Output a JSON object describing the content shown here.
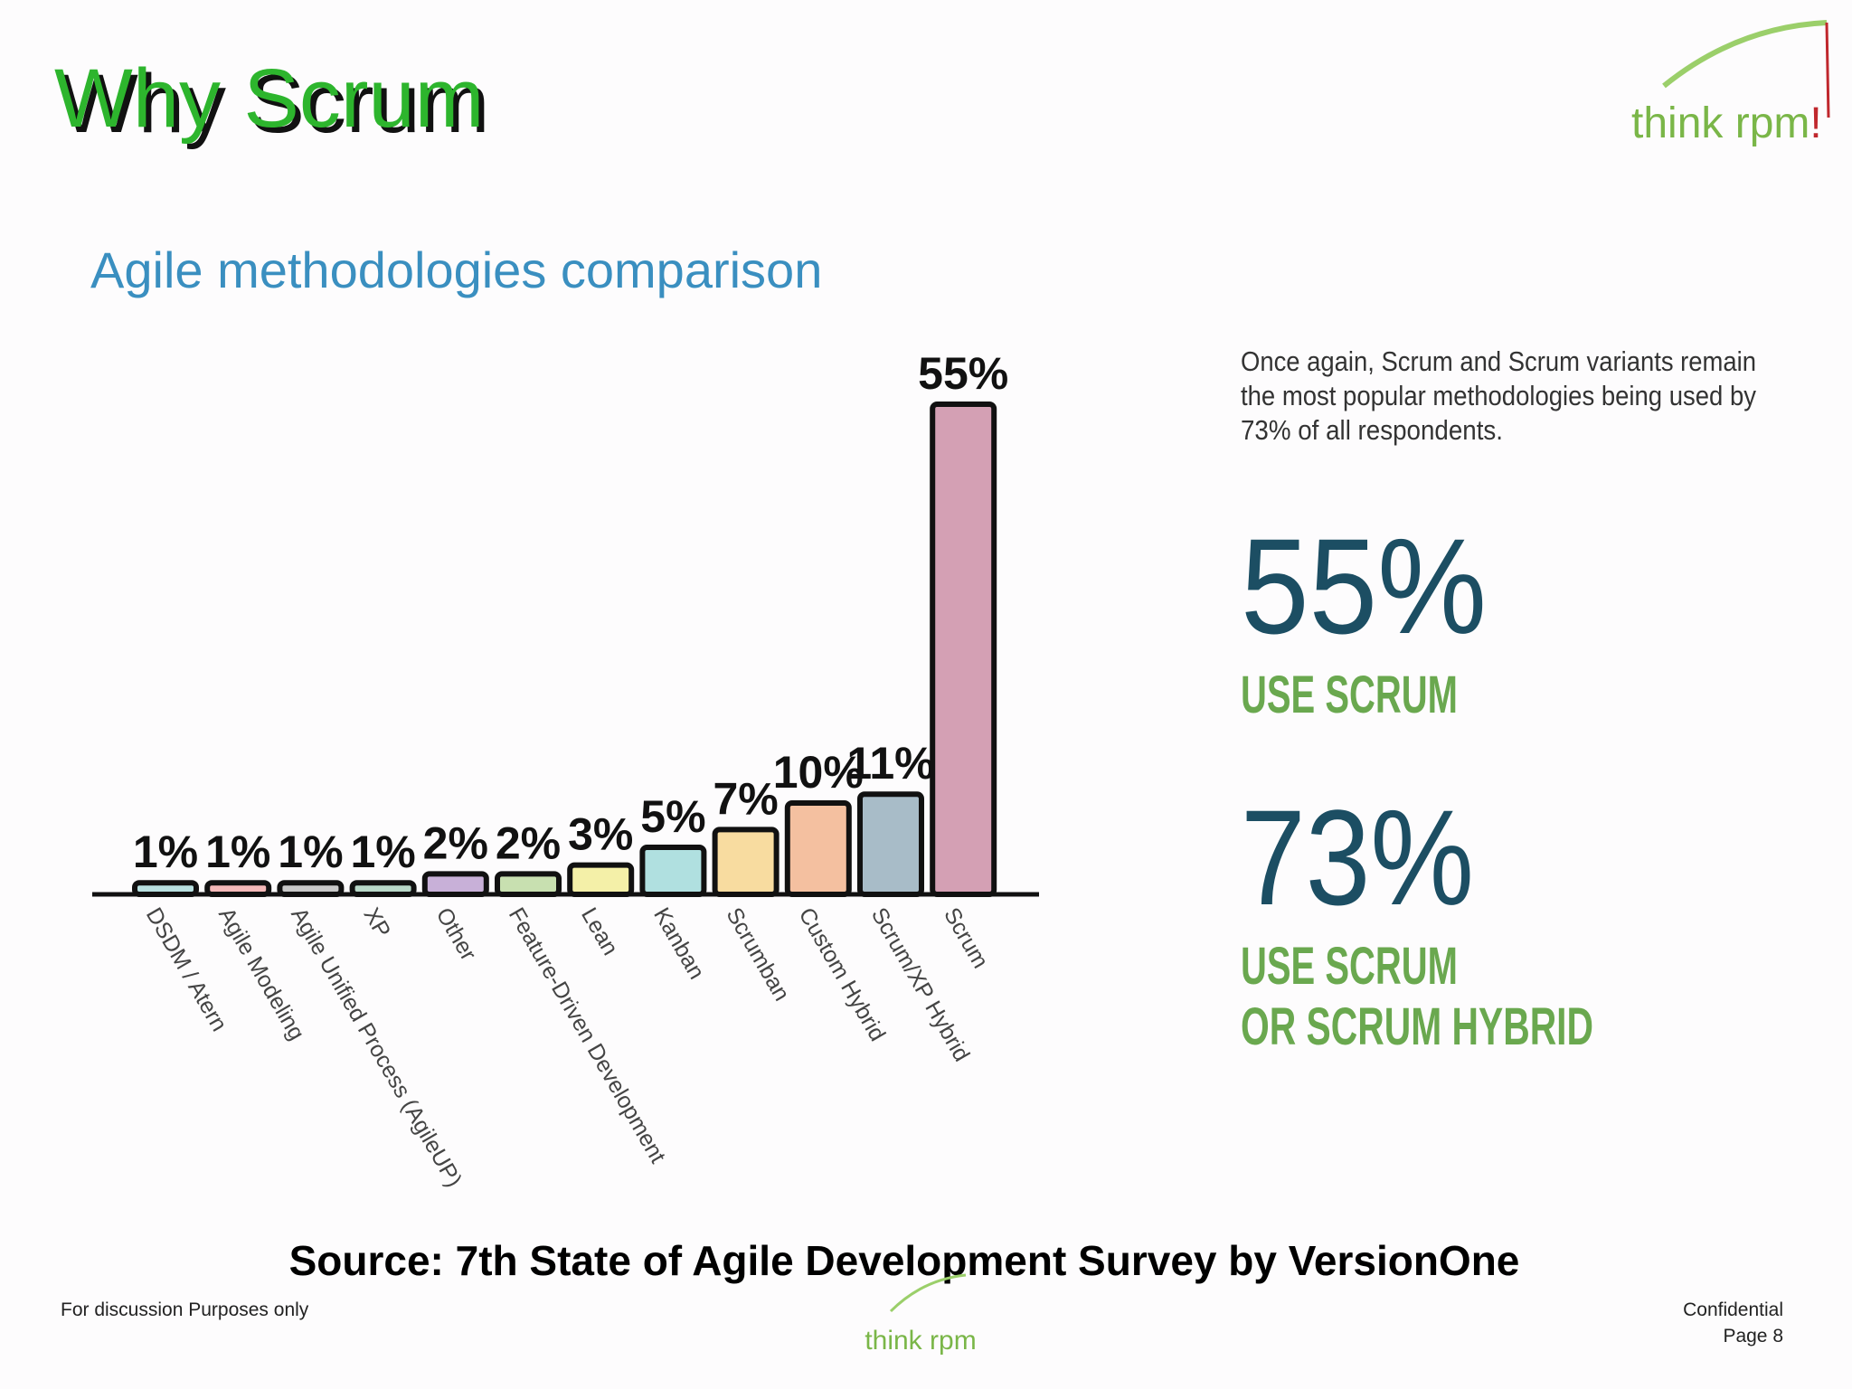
{
  "slide": {
    "title": "Why Scrum",
    "logo": "think rpm",
    "logo_mark": "!",
    "source": "Source: 7th State of Agile Development Survey by VersionOne",
    "footer_left": "For discussion Purposes only",
    "footer_right": [
      "Confidential",
      "Page 8"
    ]
  },
  "chart_data": {
    "type": "bar",
    "title": "Agile methodologies comparison",
    "categories": [
      "DSDM / Atern",
      "Agile Modeling",
      "Agile Unified Process (AgileUP)",
      "XP",
      "Other",
      "Feature-Driven Development",
      "Lean",
      "Kanban",
      "Scrumban",
      "Custom Hybrid",
      "Scrum/XP Hybrid",
      "Scrum"
    ],
    "values": [
      1,
      1,
      1,
      1,
      2,
      2,
      3,
      5,
      7,
      10,
      11,
      55
    ],
    "value_labels": [
      "1%",
      "1%",
      "1%",
      "1%",
      "2%",
      "2%",
      "3%",
      "5%",
      "7%",
      "10%",
      "11%",
      "55%"
    ],
    "colors": [
      "#b8e0e0",
      "#f4b8b8",
      "#c8c8c8",
      "#b8d8c8",
      "#c8b0d8",
      "#c8e0b0",
      "#f4f0a8",
      "#b0e0e0",
      "#f8dca0",
      "#f4c0a0",
      "#a8bcc8",
      "#d4a0b4"
    ],
    "annotation": [
      "Once again, Scrum and Scrum variants remain",
      "the most popular methodologies being used by",
      "73% of all respondents."
    ],
    "callouts": [
      {
        "value": "55%",
        "lines": [
          "USE SCRUM"
        ]
      },
      {
        "value": "73%",
        "lines": [
          "USE SCRUM",
          "OR SCRUM HYBRID"
        ]
      }
    ]
  }
}
